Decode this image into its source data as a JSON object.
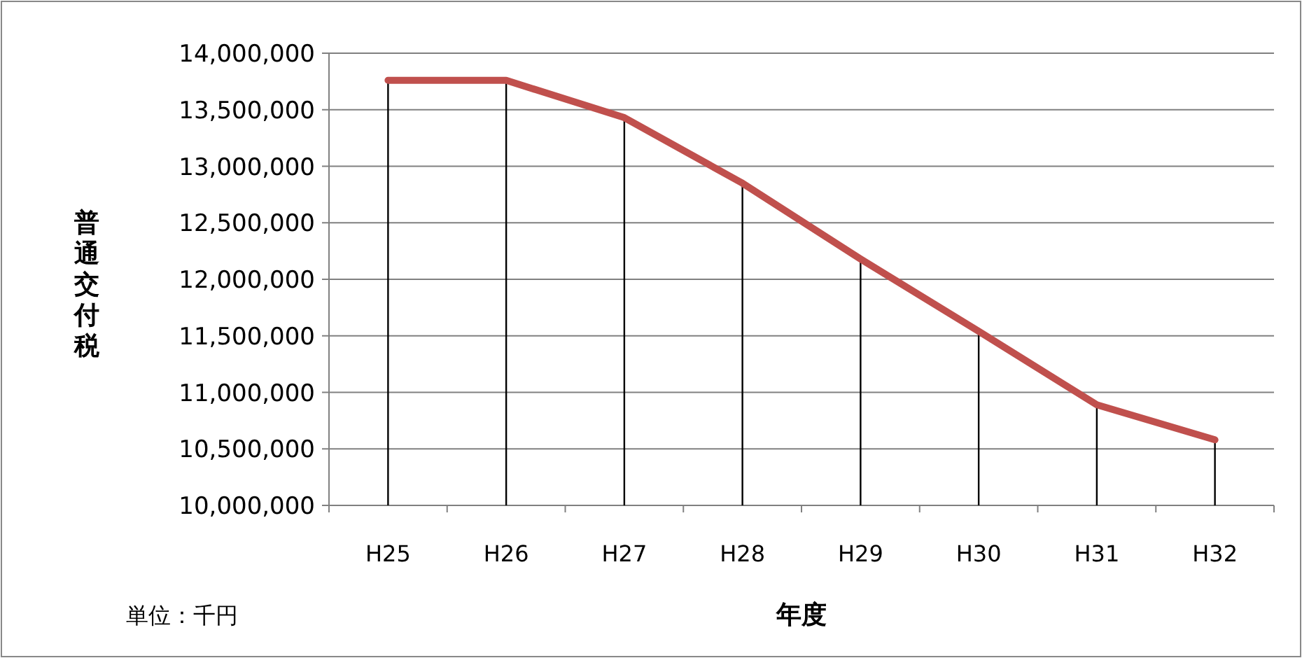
{
  "chart_data": {
    "type": "line",
    "ylabel": "普通交付税",
    "xlabel": "年度",
    "annotations": [
      "単位：千円"
    ],
    "categories": [
      "H25",
      "H26",
      "H27",
      "H28",
      "H29",
      "H30",
      "H31",
      "H32"
    ],
    "series": [
      {
        "type": "bar",
        "color": "#000000",
        "values": [
          13760000,
          13760000,
          13430000,
          12850000,
          12180000,
          11540000,
          10890000,
          10580000
        ]
      },
      {
        "color": "#c0504d",
        "values": [
          13760000,
          13760000,
          13430000,
          12850000,
          12180000,
          11540000,
          10890000,
          10580000
        ]
      }
    ],
    "ylim": [
      10000000,
      14000000
    ],
    "yticks": [
      {
        "value": 10000000,
        "label": "10,000,000"
      },
      {
        "value": 10500000,
        "label": "10,500,000"
      },
      {
        "value": 11000000,
        "label": "11,000,000"
      },
      {
        "value": 11500000,
        "label": "11,500,000"
      },
      {
        "value": 12000000,
        "label": "12,000,000"
      },
      {
        "value": 12500000,
        "label": "12,500,000"
      },
      {
        "value": 13000000,
        "label": "13,000,000"
      },
      {
        "value": 13500000,
        "label": "13,500,000"
      },
      {
        "value": 14000000,
        "label": "14,000,000"
      }
    ],
    "grid": "y",
    "marker": "none",
    "line_style": "solid"
  }
}
